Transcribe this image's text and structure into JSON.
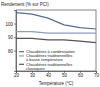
{
  "chart_data": {
    "type": "line",
    "title": "Rendement (% sur PCI)",
    "x_label": "Température (°C)",
    "x": [
      20,
      30,
      40,
      50,
      60,
      70
    ],
    "series": [
      {
        "name": "Chaudières à condensation",
        "color": "#4f6f96",
        "values": [
          108,
          107,
          104,
          99,
          97,
          96
        ]
      },
      {
        "name": "Chaudières traditionnelles à basse température",
        "color": "#8aa0b8",
        "values": [
          94,
          94,
          93,
          93,
          93,
          93
        ]
      },
      {
        "name": "Chaudières traditionnelles classiques",
        "color": "#555555",
        "values": [
          89,
          89,
          88,
          88,
          87,
          86
        ]
      }
    ],
    "xlim": [
      20,
      70
    ],
    "xticks": [
      20,
      30,
      40,
      50,
      60,
      70
    ],
    "ylim": [
      65,
      110
    ],
    "yticks": [
      80,
      90,
      100
    ],
    "grid": false,
    "legend": "lower"
  }
}
